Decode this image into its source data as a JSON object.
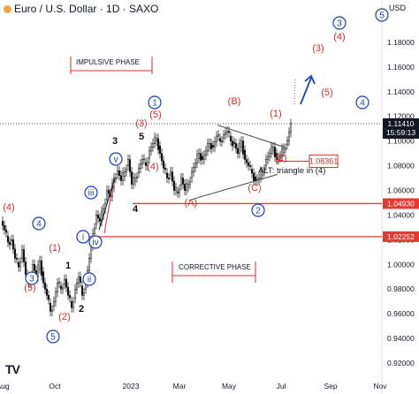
{
  "header": {
    "title": "Euro / U.S. Dollar · 1D · SAXO",
    "currency": "USD",
    "logo": "TV"
  },
  "colors": {
    "red": "#d32f2f",
    "blue": "#1a3fb8",
    "candle_up": "#ffffff",
    "candle_down": "#111111",
    "price_tag": "#131722",
    "level_tag": "#e53935"
  },
  "chart_data": {
    "type": "candlestick",
    "instrument": "EUR/USD",
    "timeframe": "1D",
    "source": "SAXO",
    "ylim": [
      0.91,
      1.2
    ],
    "y_ticks": [
      "1.18000",
      "1.16000",
      "1.14000",
      "1.12000",
      "1.10000",
      "1.08000",
      "1.06000",
      "1.04000",
      "1.02000",
      "1.00000",
      "0.98000",
      "0.96000",
      "0.94000",
      "0.92000"
    ],
    "x_ticks": [
      "Aug",
      "Oct",
      "2023",
      "Mar",
      "May",
      "Jul",
      "Sep",
      "Nov"
    ],
    "price_path": [
      [
        0,
        1.035
      ],
      [
        4,
        1.028
      ],
      [
        8,
        1.018
      ],
      [
        12,
        1.02
      ],
      [
        16,
        1.005
      ],
      [
        20,
        0.998
      ],
      [
        24,
        1.012
      ],
      [
        28,
        0.992
      ],
      [
        32,
        0.985
      ],
      [
        36,
        1.0
      ],
      [
        40,
        0.99
      ],
      [
        44,
        1.003
      ],
      [
        48,
        0.985
      ],
      [
        52,
        0.975
      ],
      [
        56,
        0.962
      ],
      [
        60,
        0.97
      ],
      [
        64,
        0.985
      ],
      [
        68,
        0.98
      ],
      [
        72,
        0.988
      ],
      [
        76,
        0.975
      ],
      [
        80,
        0.965
      ],
      [
        84,
        0.98
      ],
      [
        88,
        0.99
      ],
      [
        92,
        0.975
      ],
      [
        96,
        0.985
      ],
      [
        100,
        1.005
      ],
      [
        104,
        1.025
      ],
      [
        108,
        1.04
      ],
      [
        112,
        1.035
      ],
      [
        116,
        1.045
      ],
      [
        120,
        1.06
      ],
      [
        124,
        1.055
      ],
      [
        128,
        1.07
      ],
      [
        132,
        1.076
      ],
      [
        136,
        1.068
      ],
      [
        140,
        1.075
      ],
      [
        144,
        1.085
      ],
      [
        148,
        1.065
      ],
      [
        152,
        1.07
      ],
      [
        156,
        1.078
      ],
      [
        160,
        1.085
      ],
      [
        164,
        1.08
      ],
      [
        168,
        1.092
      ],
      [
        172,
        1.098
      ],
      [
        176,
        1.102
      ],
      [
        180,
        1.09
      ],
      [
        184,
        1.078
      ],
      [
        188,
        1.07
      ],
      [
        192,
        1.075
      ],
      [
        196,
        1.06
      ],
      [
        200,
        1.058
      ],
      [
        204,
        1.07
      ],
      [
        208,
        1.06
      ],
      [
        212,
        1.065
      ],
      [
        216,
        1.075
      ],
      [
        220,
        1.082
      ],
      [
        224,
        1.09
      ],
      [
        228,
        1.085
      ],
      [
        232,
        1.092
      ],
      [
        236,
        1.098
      ],
      [
        240,
        1.095
      ],
      [
        244,
        1.104
      ],
      [
        248,
        1.1
      ],
      [
        252,
        1.105
      ],
      [
        256,
        1.108
      ],
      [
        260,
        1.1
      ],
      [
        264,
        1.098
      ],
      [
        268,
        1.09
      ],
      [
        272,
        1.1
      ],
      [
        276,
        1.085
      ],
      [
        280,
        1.08
      ],
      [
        284,
        1.074
      ],
      [
        288,
        1.068
      ],
      [
        292,
        1.07
      ],
      [
        296,
        1.075
      ],
      [
        300,
        1.085
      ],
      [
        304,
        1.09
      ],
      [
        308,
        1.095
      ],
      [
        312,
        1.085
      ],
      [
        316,
        1.088
      ],
      [
        320,
        1.094
      ],
      [
        324,
        1.1
      ],
      [
        328,
        1.1141
      ]
    ],
    "last_price": "1.11410",
    "last_price_time": "15:59:13",
    "levels": [
      {
        "label": "1.04930",
        "value": 1.0493
      },
      {
        "label": "1.02252",
        "value": 1.02252
      }
    ],
    "boxed_level": "1.08361",
    "annotations": {
      "phases": [
        "IMPULSIVE PHASE",
        "CORRECTIVE PHASE"
      ],
      "alt_text": "ALT: triangle in (4)",
      "red_labels": [
        "(4)",
        "(5)",
        "(2)",
        "(1)",
        "(3)",
        "(5)",
        "(4)",
        "(A)",
        "(B)",
        "(C)",
        "(1)",
        "(2)",
        "(3)",
        "(4)",
        "(5)"
      ],
      "black_labels": [
        "1",
        "2",
        "3",
        "4",
        "5"
      ],
      "blue_circled": [
        "3",
        "4",
        "5",
        "i",
        "ii",
        "iii",
        "iv",
        "v",
        "1",
        "2",
        "3",
        "4",
        "5"
      ]
    }
  }
}
